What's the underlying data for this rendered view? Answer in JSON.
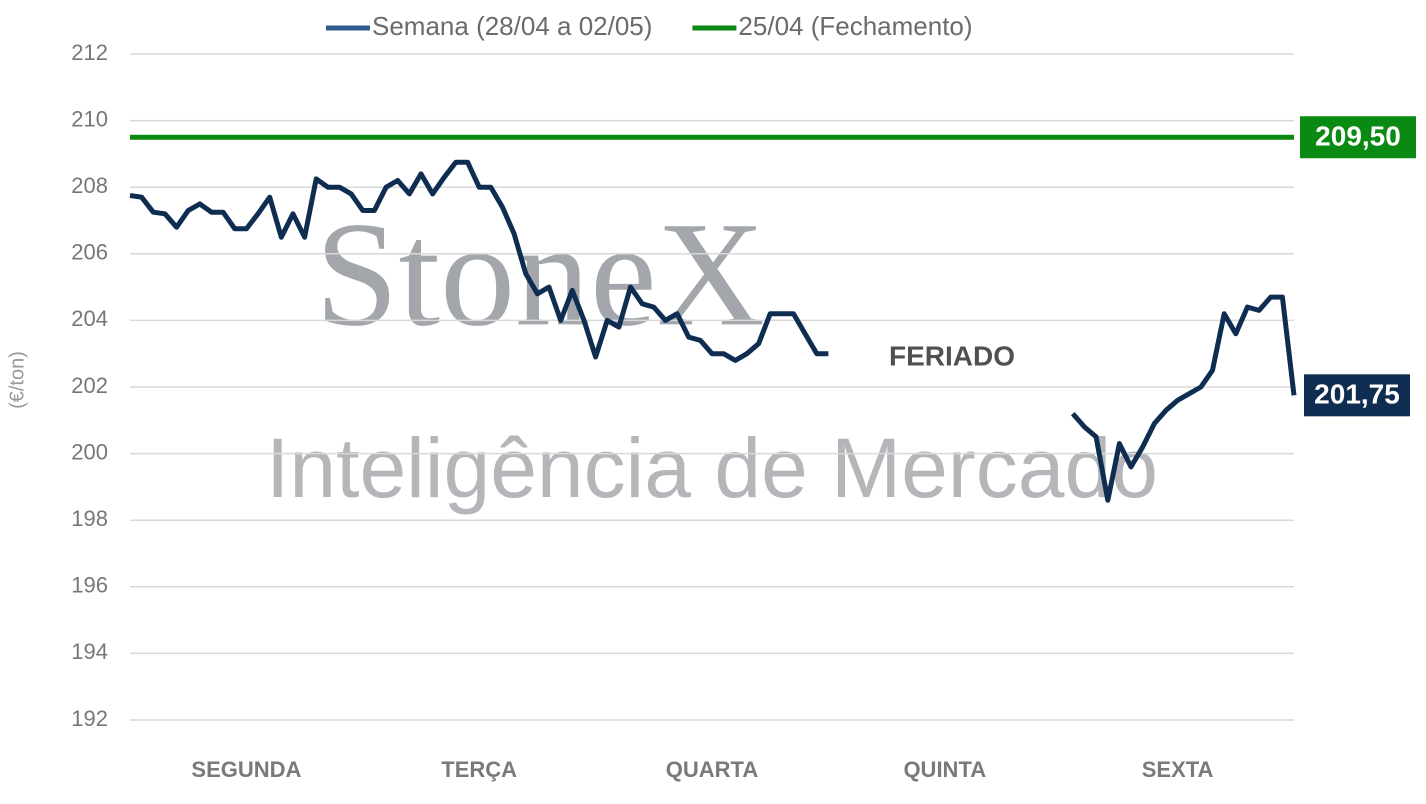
{
  "chart_data": {
    "type": "line",
    "x_labels": [
      "SEGUNDA",
      "TERÇA",
      "QUARTA",
      "QUINTA",
      "SEXTA"
    ],
    "y_label": "(€/ton)",
    "ylim": [
      192,
      212
    ],
    "yticks": [
      192,
      194,
      196,
      198,
      200,
      202,
      204,
      206,
      208,
      210,
      212
    ],
    "grid": true,
    "legend": "top",
    "annotation": "FERIADO",
    "watermark": [
      "StoneX",
      "Inteligência de Mercado"
    ],
    "series": [
      {
        "name": "Semana (28/04 a 02/05)",
        "color": "#0e2d50",
        "last_value_label": "201,75",
        "values": [
          207.75,
          207.7,
          207.25,
          207.2,
          206.8,
          207.3,
          207.5,
          207.25,
          207.25,
          206.75,
          206.75,
          207.2,
          207.7,
          206.5,
          207.2,
          206.5,
          208.25,
          208.0,
          208.0,
          207.8,
          207.3,
          207.3,
          208.0,
          208.2,
          207.8,
          208.4,
          207.8,
          208.3,
          208.75,
          208.75,
          208.0,
          208.0,
          207.4,
          206.6,
          205.4,
          204.8,
          205.0,
          204.0,
          204.9,
          204.0,
          202.9,
          204.0,
          203.8,
          205.0,
          204.5,
          204.4,
          204.0,
          204.2,
          203.5,
          203.4,
          203.0,
          203.0,
          202.8,
          203.0,
          203.3,
          204.2,
          204.2,
          204.2,
          203.6,
          203.0,
          203.0,
          null,
          null,
          null,
          null,
          null,
          null,
          null,
          null,
          null,
          null,
          null,
          null,
          null,
          null,
          null,
          null,
          null,
          null,
          null,
          null,
          201.2,
          200.8,
          200.5,
          198.6,
          200.3,
          199.6,
          200.2,
          200.9,
          201.3,
          201.6,
          201.8,
          202.0,
          202.5,
          204.2,
          203.6,
          204.4,
          204.3,
          204.7,
          204.7,
          201.75
        ]
      },
      {
        "name": "25/04 (Fechamento)",
        "color": "#0a8a12",
        "value": 209.5,
        "value_label": "209,50"
      }
    ]
  }
}
